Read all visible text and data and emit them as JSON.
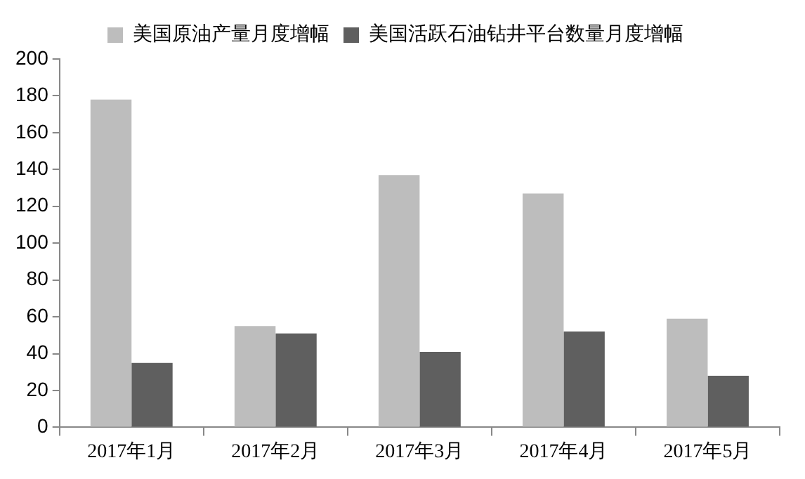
{
  "chart_data": {
    "type": "bar",
    "categories": [
      "2017年1月",
      "2017年2月",
      "2017年3月",
      "2017年4月",
      "2017年5月"
    ],
    "series": [
      {
        "name": "美国原油产量月度增幅",
        "color": "#bdbdbd",
        "values": [
          178,
          55,
          137,
          127,
          59
        ]
      },
      {
        "name": "美国活跃石油钻井平台数量月度增幅",
        "color": "#5f5f5f",
        "values": [
          35,
          51,
          41,
          52,
          28
        ]
      }
    ],
    "ylim": [
      0,
      200
    ],
    "yticks": [
      0,
      20,
      40,
      60,
      80,
      100,
      120,
      140,
      160,
      180,
      200
    ],
    "grid": false,
    "legend": "top"
  }
}
